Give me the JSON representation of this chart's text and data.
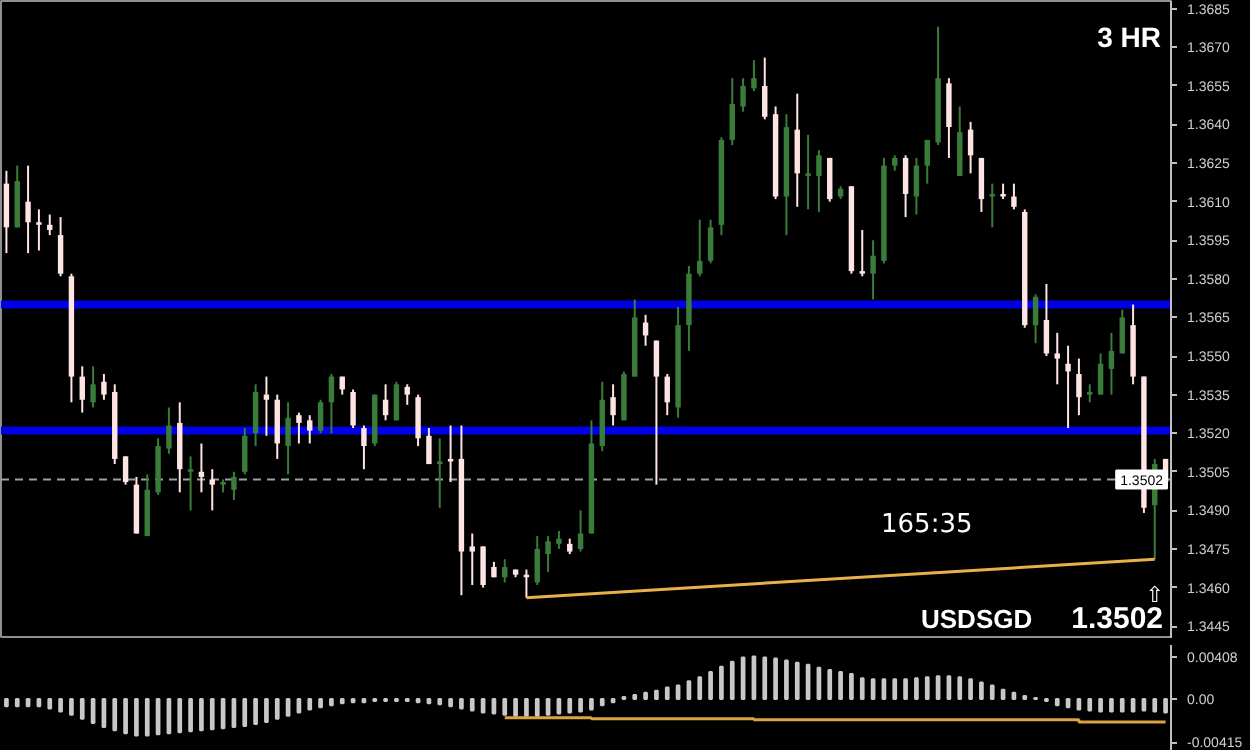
{
  "chart_data": [
    {
      "type": "candlestick",
      "title": "3 HR",
      "subtitle": "USDSGD",
      "annotations": [
        "165:35",
        "1.3502",
        "⇧"
      ],
      "categories": [
        null,
        null,
        null,
        null,
        null,
        null,
        null,
        null,
        null,
        null,
        null,
        null,
        null,
        null,
        null,
        null,
        null,
        null,
        null,
        null,
        null,
        null,
        null,
        null,
        null,
        null,
        null,
        null,
        null,
        null,
        null,
        null,
        null,
        null,
        null,
        null,
        null,
        null,
        null,
        null,
        null,
        null,
        null,
        null,
        null,
        null,
        null,
        null,
        null,
        null,
        null,
        null,
        null,
        null,
        null,
        null,
        null,
        null,
        null,
        null,
        null,
        null,
        null,
        null,
        null,
        null,
        null,
        null,
        null,
        null,
        null,
        null,
        null,
        null,
        null,
        null,
        null,
        null,
        null,
        null,
        null,
        null,
        null,
        null,
        null,
        null,
        null,
        null,
        null,
        null,
        null,
        null,
        null,
        null,
        null,
        null,
        null,
        null,
        null,
        null,
        null,
        null,
        null,
        null,
        null,
        null,
        null,
        null
      ],
      "ohlc": [
        [
          1.3617,
          1.3622,
          1.359,
          1.36
        ],
        [
          1.36,
          1.3624,
          1.36,
          1.3618
        ],
        [
          1.361,
          1.3624,
          1.359,
          1.3602
        ],
        [
          1.3602,
          1.3607,
          1.3591,
          1.3601
        ],
        [
          1.3601,
          1.3605,
          1.3597,
          1.3599
        ],
        [
          1.3597,
          1.3604,
          1.3581,
          1.3582
        ],
        [
          1.3581,
          1.3582,
          1.3532,
          1.3542
        ],
        [
          1.3542,
          1.3546,
          1.3528,
          1.3533
        ],
        [
          1.3532,
          1.3546,
          1.353,
          1.3539
        ],
        [
          1.354,
          1.3543,
          1.3533,
          1.3535
        ],
        [
          1.3536,
          1.3539,
          1.3508,
          1.351
        ],
        [
          1.3511,
          1.3511,
          1.35,
          1.3501
        ],
        [
          1.35,
          1.3503,
          1.3481,
          1.3481
        ],
        [
          1.348,
          1.3504,
          1.348,
          1.3498
        ],
        [
          1.3497,
          1.3518,
          1.3496,
          1.3515
        ],
        [
          1.3514,
          1.353,
          1.3512,
          1.3523
        ],
        [
          1.3524,
          1.3532,
          1.3497,
          1.3506
        ],
        [
          1.3505,
          1.3511,
          1.349,
          1.3506
        ],
        [
          1.3505,
          1.3516,
          1.3497,
          1.3503
        ],
        [
          1.3502,
          1.3506,
          1.349,
          1.35
        ],
        [
          1.35,
          1.3502,
          1.3497,
          1.3501
        ],
        [
          1.3498,
          1.3505,
          1.3494,
          1.3503
        ],
        [
          1.3505,
          1.3522,
          1.3504,
          1.3519
        ],
        [
          1.352,
          1.3539,
          1.3515,
          1.3536
        ],
        [
          1.3535,
          1.3542,
          1.3519,
          1.3533
        ],
        [
          1.3533,
          1.3535,
          1.351,
          1.3516
        ],
        [
          1.3515,
          1.3532,
          1.3504,
          1.3526
        ],
        [
          1.3527,
          1.3528,
          1.3516,
          1.3524
        ],
        [
          1.3525,
          1.3527,
          1.3516,
          1.3521
        ],
        [
          1.3521,
          1.3533,
          1.352,
          1.3532
        ],
        [
          1.3532,
          1.3543,
          1.352,
          1.3542
        ],
        [
          1.3542,
          1.3542,
          1.3535,
          1.3537
        ],
        [
          1.3536,
          1.3537,
          1.3522,
          1.3523
        ],
        [
          1.3522,
          1.3523,
          1.3506,
          1.3515
        ],
        [
          1.3516,
          1.3535,
          1.3515,
          1.3535
        ],
        [
          1.3533,
          1.3539,
          1.3525,
          1.3527
        ],
        [
          1.3525,
          1.354,
          1.3525,
          1.3539
        ],
        [
          1.3538,
          1.3539,
          1.3531,
          1.3535
        ],
        [
          1.3534,
          1.3535,
          1.3515,
          1.3518
        ],
        [
          1.3519,
          1.3522,
          1.3508,
          1.3508
        ],
        [
          1.3508,
          1.3518,
          1.3491,
          1.3509
        ],
        [
          1.351,
          1.3523,
          1.3501,
          1.3509
        ],
        [
          1.351,
          1.3523,
          1.3457,
          1.3474
        ],
        [
          1.3476,
          1.3481,
          1.3461,
          1.3474
        ],
        [
          1.3476,
          1.3476,
          1.346,
          1.3461
        ],
        [
          1.3468,
          1.347,
          1.3464,
          1.3464
        ],
        [
          1.3464,
          1.3471,
          1.3462,
          1.3468
        ],
        [
          1.3467,
          1.3467,
          1.3464,
          1.3465
        ],
        [
          1.3465,
          1.3467,
          1.3456,
          1.3464
        ],
        [
          1.3462,
          1.348,
          1.3461,
          1.3475
        ],
        [
          1.3473,
          1.348,
          1.3466,
          1.3478
        ],
        [
          1.3477,
          1.3482,
          1.3475,
          1.3479
        ],
        [
          1.3477,
          1.3479,
          1.3473,
          1.3474
        ],
        [
          1.3475,
          1.349,
          1.3474,
          1.3481
        ],
        [
          1.3481,
          1.3525,
          1.3481,
          1.3516
        ],
        [
          1.3515,
          1.354,
          1.3513,
          1.3533
        ],
        [
          1.3534,
          1.3539,
          1.3523,
          1.3527
        ],
        [
          1.3525,
          1.3544,
          1.3525,
          1.3543
        ],
        [
          1.3542,
          1.3572,
          1.3542,
          1.3565
        ],
        [
          1.3563,
          1.3566,
          1.3554,
          1.3558
        ],
        [
          1.3556,
          1.3556,
          1.35,
          1.3542
        ],
        [
          1.3542,
          1.3543,
          1.3527,
          1.3532
        ],
        [
          1.353,
          1.3569,
          1.3526,
          1.3562
        ],
        [
          1.3562,
          1.3585,
          1.3552,
          1.3582
        ],
        [
          1.3582,
          1.3603,
          1.3581,
          1.3587
        ],
        [
          1.3587,
          1.3603,
          1.3586,
          1.36
        ],
        [
          1.3601,
          1.3635,
          1.3597,
          1.3634
        ],
        [
          1.3634,
          1.3658,
          1.3632,
          1.3648
        ],
        [
          1.3647,
          1.3658,
          1.3645,
          1.3655
        ],
        [
          1.3654,
          1.3665,
          1.3653,
          1.3658
        ],
        [
          1.3655,
          1.3666,
          1.3642,
          1.3643
        ],
        [
          1.3644,
          1.3647,
          1.3611,
          1.3612
        ],
        [
          1.3612,
          1.3644,
          1.3597,
          1.3639
        ],
        [
          1.3638,
          1.3652,
          1.3608,
          1.3621
        ],
        [
          1.362,
          1.3636,
          1.3607,
          1.3621
        ],
        [
          1.362,
          1.363,
          1.3606,
          1.3628
        ],
        [
          1.3627,
          1.3627,
          1.361,
          1.3611
        ],
        [
          1.3612,
          1.3616,
          1.3611,
          1.3615
        ],
        [
          1.3616,
          1.3616,
          1.3582,
          1.3583
        ],
        [
          1.3583,
          1.3599,
          1.3581,
          1.3582
        ],
        [
          1.3582,
          1.3595,
          1.3572,
          1.3589
        ],
        [
          1.3587,
          1.3627,
          1.3586,
          1.3624
        ],
        [
          1.3624,
          1.3628,
          1.3622,
          1.3627
        ],
        [
          1.3627,
          1.3628,
          1.3604,
          1.3613
        ],
        [
          1.3612,
          1.3627,
          1.3605,
          1.3624
        ],
        [
          1.3624,
          1.3634,
          1.3617,
          1.3634
        ],
        [
          1.3633,
          1.3678,
          1.3632,
          1.3658
        ],
        [
          1.3656,
          1.3658,
          1.3627,
          1.3639
        ],
        [
          1.362,
          1.3647,
          1.362,
          1.3637
        ],
        [
          1.3638,
          1.3641,
          1.3621,
          1.3628
        ],
        [
          1.3627,
          1.3627,
          1.3606,
          1.3611
        ],
        [
          1.3612,
          1.3617,
          1.36,
          1.3613
        ],
        [
          1.3613,
          1.3617,
          1.3611,
          1.3612
        ],
        [
          1.3612,
          1.3617,
          1.3607,
          1.3608
        ],
        [
          1.3606,
          1.3607,
          1.3561,
          1.3562
        ],
        [
          1.3562,
          1.3574,
          1.3555,
          1.3573
        ],
        [
          1.3564,
          1.3578,
          1.355,
          1.3551
        ],
        [
          1.3551,
          1.3559,
          1.3539,
          1.3549
        ],
        [
          1.3547,
          1.3554,
          1.3522,
          1.3544
        ],
        [
          1.3543,
          1.3549,
          1.3527,
          1.3534
        ],
        [
          1.3535,
          1.3539,
          1.3532,
          1.3536
        ],
        [
          1.3535,
          1.3551,
          1.3535,
          1.3547
        ],
        [
          1.3545,
          1.3559,
          1.3535,
          1.3552
        ],
        [
          1.3551,
          1.3568,
          1.3551,
          1.3565
        ],
        [
          1.3562,
          1.357,
          1.3539,
          1.3542
        ],
        [
          1.3542,
          1.3542,
          1.3489,
          1.3491
        ],
        [
          1.3492,
          1.351,
          1.3471,
          1.3508
        ],
        [
          1.351,
          1.351,
          1.35,
          1.3501
        ]
      ],
      "colors": [
        "#ffe4e4",
        "#3a7d3a",
        "#ffe4e4",
        "#ffe4e4",
        "#ffe4e4",
        "#ffe4e4",
        "#ffe4e4",
        "#ffe4e4",
        "#3a7d3a",
        "#ffe4e4",
        "#ffe4e4",
        "#ffe4e4",
        "#ffe4e4",
        "#3a7d3a",
        "#3a7d3a",
        "#3a7d3a",
        "#ffe4e4",
        "#3a7d3a",
        "#ffe4e4",
        "#ffe4e4",
        "#3a7d3a",
        "#3a7d3a",
        "#3a7d3a",
        "#3a7d3a",
        "#ffe4e4",
        "#ffe4e4",
        "#3a7d3a",
        "#ffe4e4",
        "#ffe4e4",
        "#3a7d3a",
        "#3a7d3a",
        "#ffe4e4",
        "#ffe4e4",
        "#ffe4e4",
        "#3a7d3a",
        "#ffe4e4",
        "#3a7d3a",
        "#ffe4e4",
        "#ffe4e4",
        "#ffe4e4",
        "#3a7d3a",
        "#ffe4e4",
        "#ffe4e4",
        "#ffe4e4",
        "#ffe4e4",
        "#ffe4e4",
        "#3a7d3a",
        "#ffe4e4",
        "#ffe4e4",
        "#3a7d3a",
        "#3a7d3a",
        "#3a7d3a",
        "#ffe4e4",
        "#3a7d3a",
        "#3a7d3a",
        "#3a7d3a",
        "#ffe4e4",
        "#3a7d3a",
        "#3a7d3a",
        "#ffe4e4",
        "#ffe4e4",
        "#ffe4e4",
        "#3a7d3a",
        "#3a7d3a",
        "#3a7d3a",
        "#3a7d3a",
        "#3a7d3a",
        "#3a7d3a",
        "#3a7d3a",
        "#3a7d3a",
        "#ffe4e4",
        "#ffe4e4",
        "#3a7d3a",
        "#ffe4e4",
        "#3a7d3a",
        "#3a7d3a",
        "#ffe4e4",
        "#3a7d3a",
        "#ffe4e4",
        "#ffe4e4",
        "#3a7d3a",
        "#3a7d3a",
        "#3a7d3a",
        "#ffe4e4",
        "#3a7d3a",
        "#3a7d3a",
        "#3a7d3a",
        "#ffe4e4",
        "#3a7d3a",
        "#ffe4e4",
        "#ffe4e4",
        "#3a7d3a",
        "#ffe4e4",
        "#ffe4e4",
        "#ffe4e4",
        "#3a7d3a",
        "#ffe4e4",
        "#ffe4e4",
        "#ffe4e4",
        "#ffe4e4",
        "#3a7d3a",
        "#3a7d3a",
        "#3a7d3a",
        "#3a7d3a",
        "#ffe4e4",
        "#ffe4e4",
        "#3a7d3a",
        "#ffe4e4"
      ],
      "series": [
        {
          "type": "line",
          "color": "#e8b04a",
          "values": [
            null,
            null,
            null,
            null,
            null,
            null,
            null,
            null,
            null,
            null,
            null,
            null,
            null,
            null,
            null,
            null,
            null,
            null,
            null,
            null,
            null,
            null,
            null,
            null,
            null,
            null,
            null,
            null,
            null,
            null,
            null,
            null,
            null,
            null,
            null,
            null,
            null,
            null,
            null,
            null,
            null,
            null,
            null,
            null,
            null,
            null,
            null,
            null,
            1.3456,
            null,
            null,
            null,
            null,
            null,
            null,
            null,
            null,
            null,
            null,
            null,
            null,
            null,
            null,
            null,
            null,
            null,
            null,
            null,
            null,
            null,
            null,
            null,
            null,
            null,
            null,
            null,
            null,
            null,
            null,
            null,
            null,
            null,
            null,
            null,
            null,
            null,
            null,
            null,
            null,
            null,
            null,
            null,
            null,
            null,
            null,
            null,
            null,
            null,
            null,
            null,
            null,
            null,
            null,
            null,
            null,
            null,
            1.3471,
            null
          ]
        }
      ],
      "ylim": [
        1.344,
        1.3688
      ],
      "yticks": [
        1.3445,
        {
          "value": 1.346,
          "label": "1.3460"
        },
        1.3475,
        {
          "value": 1.349,
          "label": "1.3490"
        },
        1.3505,
        {
          "value": 1.352,
          "label": "1.3520"
        },
        1.3535,
        {
          "value": 1.355,
          "label": "1.3550"
        },
        1.3565,
        {
          "value": 1.358,
          "label": "1.3580"
        },
        1.3595,
        {
          "value": 1.361,
          "label": "1.3610"
        },
        1.3625,
        {
          "value": 1.364,
          "label": "1.3640"
        },
        1.3655,
        {
          "value": 1.367,
          "label": "1.3670"
        },
        1.3685
      ],
      "ref_lines": [
        {
          "axis": "y",
          "value": 1.357,
          "color": "#0000e6"
        },
        {
          "axis": "y",
          "value": 1.3521,
          "color": "#0000e6"
        },
        {
          "axis": "y",
          "value": 1.3502,
          "label": "1.3502",
          "color": "#a0a0a0",
          "line_style": "dashed"
        }
      ],
      "tick_labels": "y"
    },
    {
      "type": "bar",
      "categories": [
        null,
        null,
        null,
        null,
        null,
        null,
        null,
        null,
        null,
        null,
        null,
        null,
        null,
        null,
        null,
        null,
        null,
        null,
        null,
        null,
        null,
        null,
        null,
        null,
        null,
        null,
        null,
        null,
        null,
        null,
        null,
        null,
        null,
        null,
        null,
        null,
        null,
        null,
        null,
        null,
        null,
        null,
        null,
        null,
        null,
        null,
        null,
        null,
        null,
        null,
        null,
        null,
        null,
        null,
        null,
        null,
        null,
        null,
        null,
        null,
        null,
        null,
        null,
        null,
        null,
        null,
        null,
        null,
        null,
        null,
        null,
        null,
        null,
        null,
        null,
        null,
        null,
        null,
        null,
        null,
        null,
        null,
        null,
        null,
        null,
        null,
        null,
        null,
        null,
        null,
        null,
        null,
        null,
        null,
        null,
        null,
        null,
        null,
        null,
        null,
        null,
        null,
        null,
        null,
        null,
        null,
        null,
        null
      ],
      "series": [
        {
          "type": "bar",
          "color": "#c8c8c8",
          "values": [
            -0.0007,
            -0.0007,
            -0.0007,
            -0.0007,
            -0.0009,
            -0.0012,
            -0.0015,
            -0.0019,
            -0.0023,
            -0.0027,
            -0.003,
            -0.0033,
            -0.0035,
            -0.0035,
            -0.0034,
            -0.0033,
            -0.0032,
            -0.0031,
            -0.003,
            -0.0029,
            -0.0028,
            -0.0027,
            -0.0026,
            -0.0024,
            -0.0022,
            -0.0019,
            -0.0016,
            -0.0013,
            -0.001,
            -0.0008,
            -0.0006,
            -0.0004,
            -0.0003,
            -0.0003,
            -0.0002,
            -0.0002,
            -0.0002,
            -0.0002,
            -0.0003,
            -0.0004,
            -0.0005,
            -0.0007,
            -0.0009,
            -0.0011,
            -0.0013,
            -0.0014,
            -0.0015,
            -0.0016,
            -0.0016,
            -0.0016,
            -0.0015,
            -0.0014,
            -0.0013,
            -0.0012,
            -0.001,
            -0.0006,
            -0.0003,
            0.0002,
            0.0004,
            0.0006,
            0.0008,
            0.0011,
            0.0013,
            0.0017,
            0.0021,
            0.0026,
            0.0031,
            0.0036,
            0.004,
            0.0041,
            0.004,
            0.0039,
            0.0037,
            0.0035,
            0.0033,
            0.003,
            0.0028,
            0.0026,
            0.0024,
            0.002,
            0.0019,
            0.0019,
            0.0019,
            0.0019,
            0.002,
            0.0021,
            0.0022,
            0.0022,
            0.0021,
            0.0019,
            0.0016,
            0.0013,
            0.0009,
            0.0006,
            0.0003,
            0.0001,
            -0.0002,
            -0.0006,
            -0.0008,
            -0.001,
            -0.0011,
            -0.0012,
            -0.0012,
            -0.0012,
            -0.0012,
            -0.0011,
            -0.0012,
            -0.0013
          ]
        },
        {
          "type": "step",
          "color": "#d9a441",
          "values": [
            null,
            null,
            null,
            null,
            null,
            null,
            null,
            null,
            null,
            null,
            null,
            null,
            null,
            null,
            null,
            null,
            null,
            null,
            null,
            null,
            null,
            null,
            null,
            null,
            null,
            null,
            null,
            null,
            null,
            null,
            null,
            null,
            null,
            null,
            null,
            null,
            null,
            null,
            null,
            null,
            null,
            null,
            null,
            null,
            null,
            null,
            -0.0018,
            null,
            null,
            null,
            null,
            null,
            null,
            null,
            -0.0019,
            null,
            null,
            null,
            null,
            null,
            null,
            null,
            null,
            null,
            null,
            null,
            null,
            null,
            null,
            -0.002,
            null,
            null,
            null,
            null,
            null,
            null,
            null,
            null,
            null,
            null,
            null,
            null,
            null,
            null,
            -0.002,
            null,
            null,
            null,
            null,
            null,
            null,
            null,
            null,
            null,
            null,
            null,
            null,
            null,
            null,
            -0.0022,
            null,
            null,
            null,
            null,
            null,
            null,
            null,
            -0.0022
          ]
        }
      ],
      "ylim": [
        -0.005,
        0.0052
      ],
      "yticks": [
        -0.00415,
        {
          "value": 0,
          "label": "0.00"
        },
        0.00408
      ],
      "tick_labels": "y"
    }
  ]
}
